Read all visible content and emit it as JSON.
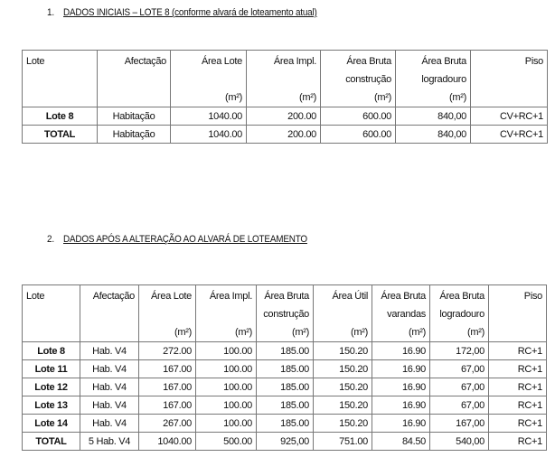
{
  "section1": {
    "number": "1.",
    "title": "DADOS INICIAIS – LOTE 8 (conforme alvará de loteamento atual)",
    "headers": [
      [
        "Lote",
        "",
        ""
      ],
      [
        "Afectação",
        "",
        ""
      ],
      [
        "Área Lote",
        "",
        "(m²)"
      ],
      [
        "Área Impl.",
        "",
        "(m²)"
      ],
      [
        "Área Bruta",
        "construção",
        "(m²)"
      ],
      [
        "Área Bruta",
        "logradouro",
        "(m²)"
      ],
      [
        "Piso",
        "",
        ""
      ]
    ],
    "rows": [
      [
        "Lote 8",
        "Habitação",
        "1040.00",
        "200.00",
        "600.00",
        "840,00",
        "CV+RC+1"
      ],
      [
        "TOTAL",
        "Habitação",
        "1040.00",
        "200.00",
        "600.00",
        "840,00",
        "CV+RC+1"
      ]
    ]
  },
  "section2": {
    "number": "2.",
    "title": "DADOS APÓS A ALTERAÇÃO AO ALVARÁ DE LOTEAMENTO",
    "headers": [
      [
        "Lote",
        "",
        ""
      ],
      [
        "Afectação",
        "",
        ""
      ],
      [
        "Área Lote",
        "",
        "(m²)"
      ],
      [
        "Área Impl.",
        "",
        "(m²)"
      ],
      [
        "Área Bruta",
        "construção",
        "(m²)"
      ],
      [
        "Área Útil",
        "",
        "(m²)"
      ],
      [
        "Área Bruta",
        "varandas",
        "(m²)"
      ],
      [
        "Área Bruta",
        "logradouro",
        "(m²)"
      ],
      [
        "Piso",
        "",
        ""
      ]
    ],
    "rows": [
      [
        "Lote 8",
        "Hab. V4",
        "272.00",
        "100.00",
        "185.00",
        "150.20",
        "16.90",
        "172,00",
        "RC+1"
      ],
      [
        "Lote 11",
        "Hab. V4",
        "167.00",
        "100.00",
        "185.00",
        "150.20",
        "16.90",
        "67,00",
        "RC+1"
      ],
      [
        "Lote 12",
        "Hab. V4",
        "167.00",
        "100.00",
        "185.00",
        "150.20",
        "16.90",
        "67,00",
        "RC+1"
      ],
      [
        "Lote 13",
        "Hab. V4",
        "167.00",
        "100.00",
        "185.00",
        "150.20",
        "16.90",
        "67,00",
        "RC+1"
      ],
      [
        "Lote 14",
        "Hab. V4",
        "267.00",
        "100.00",
        "185.00",
        "150.20",
        "16.90",
        "167,00",
        "RC+1"
      ],
      [
        "TOTAL",
        "5 Hab. V4",
        "1040.00",
        "500.00",
        "925,00",
        "751.00",
        "84.50",
        "540,00",
        "RC+1"
      ]
    ]
  }
}
